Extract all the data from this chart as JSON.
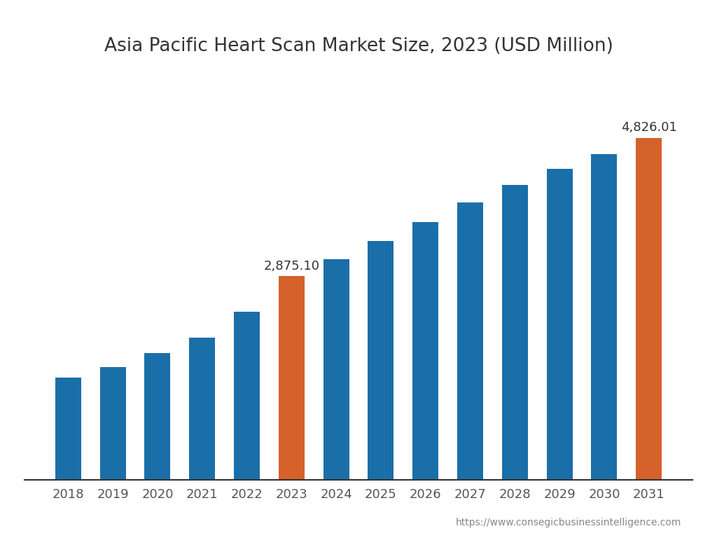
{
  "title": "Asia Pacific Heart Scan Market Size, 2023 (USD Million)",
  "years": [
    2018,
    2019,
    2020,
    2021,
    2022,
    2023,
    2024,
    2025,
    2026,
    2027,
    2028,
    2029,
    2030,
    2031
  ],
  "values": [
    1450,
    1600,
    1790,
    2010,
    2380,
    2875.1,
    3120,
    3370,
    3640,
    3920,
    4160,
    4390,
    4600,
    4826.01
  ],
  "bar_colors": [
    "#1a6fa8",
    "#1a6fa8",
    "#1a6fa8",
    "#1a6fa8",
    "#1a6fa8",
    "#d4622a",
    "#1a6fa8",
    "#1a6fa8",
    "#1a6fa8",
    "#1a6fa8",
    "#1a6fa8",
    "#1a6fa8",
    "#1a6fa8",
    "#d4622a"
  ],
  "annotated_bars": [
    5,
    13
  ],
  "annotations": [
    "2,875.10",
    "4,826.01"
  ],
  "background_color": "#ffffff",
  "footer_text": "https://www.consegicbusinessintelligence.com",
  "title_fontsize": 19,
  "tick_fontsize": 13,
  "annotation_fontsize": 13,
  "ylim_max": 5800
}
